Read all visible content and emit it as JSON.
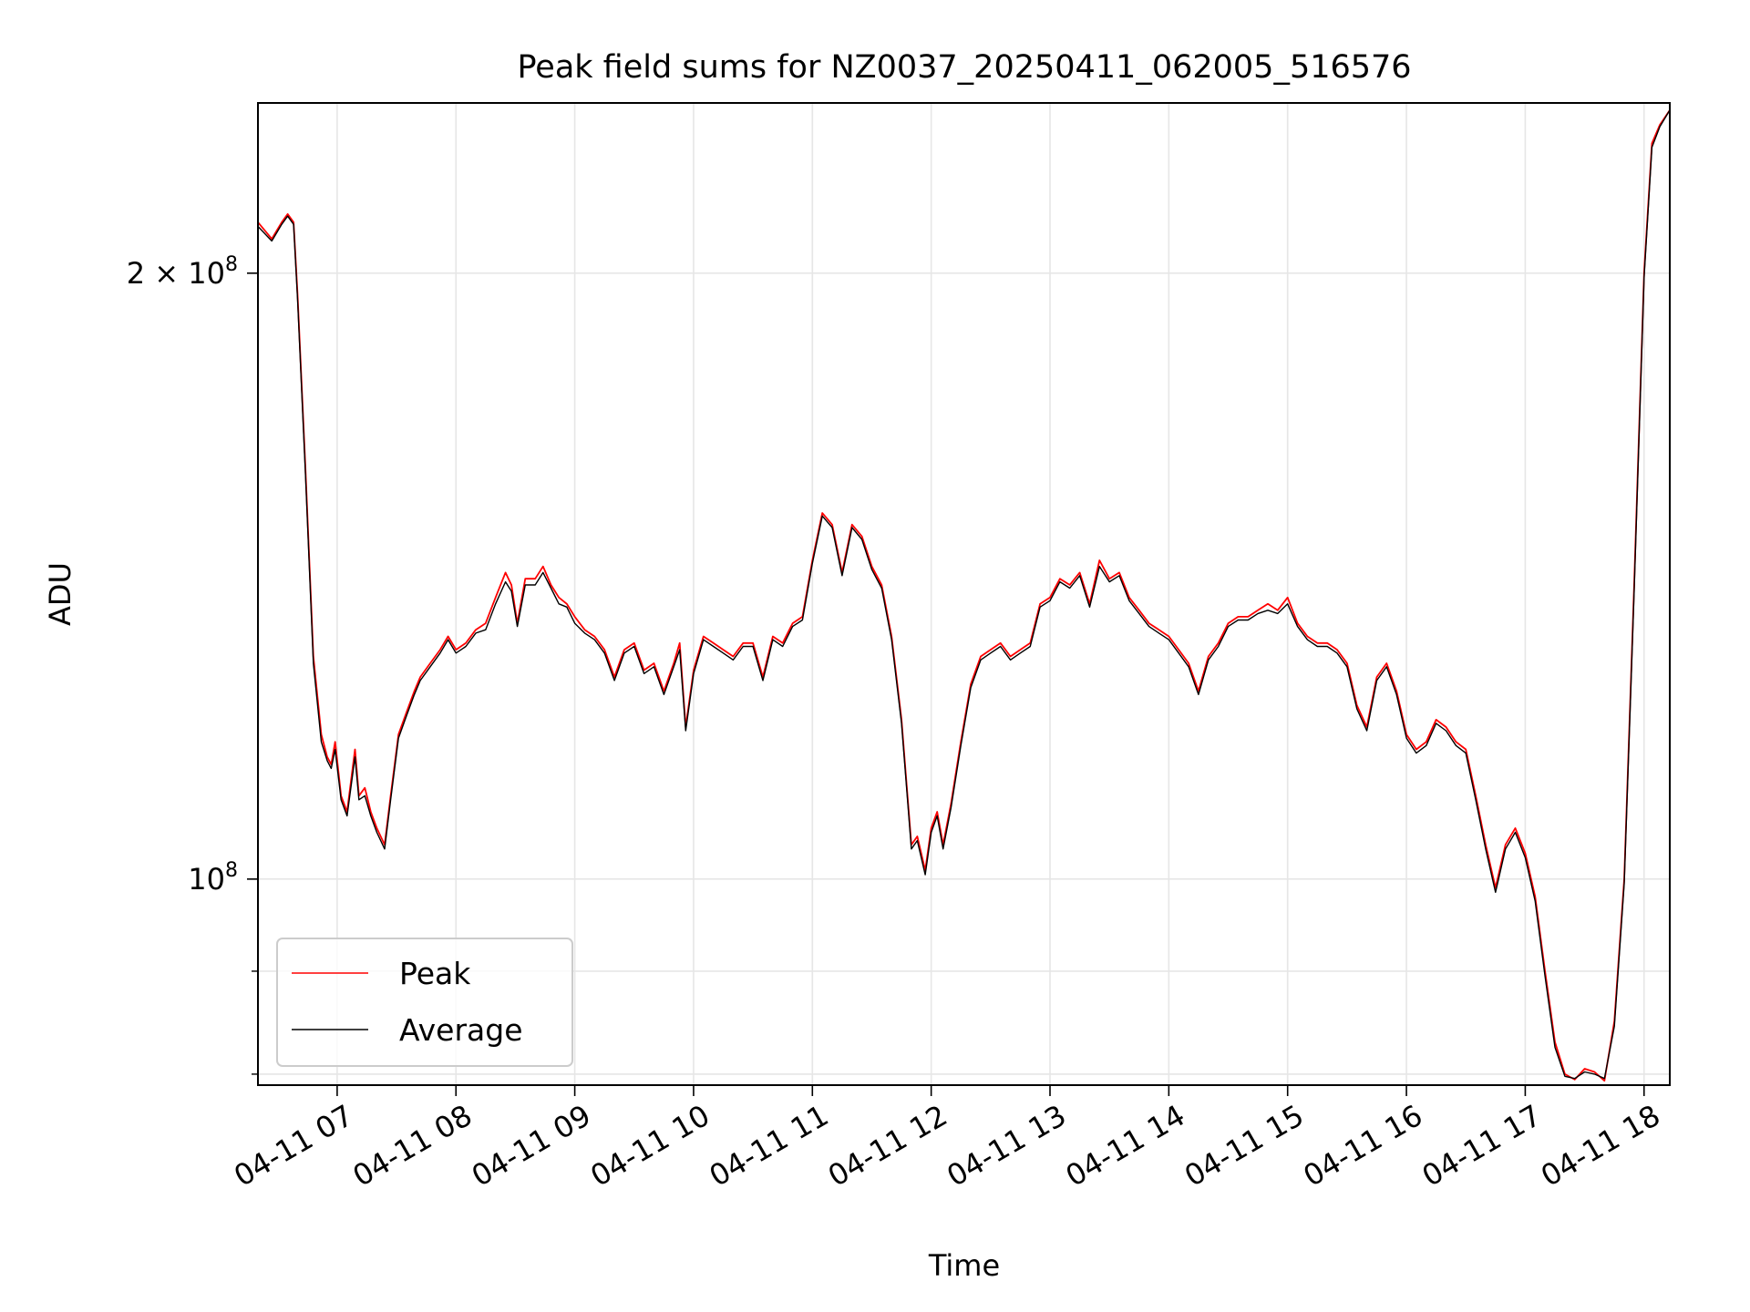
{
  "chart_data": {
    "type": "line",
    "title": "Peak field sums for NZ0037_20250411_062005_516576",
    "xlabel": "Time",
    "ylabel": "ADU",
    "yscale": "log",
    "grid": true,
    "legend_position": "lower-left",
    "x_tick_labels": [
      "04-11 07",
      "04-11 08",
      "04-11 09",
      "04-11 10",
      "04-11 11",
      "04-11 12",
      "04-11 13",
      "04-11 14",
      "04-11 15",
      "04-11 16",
      "04-11 17",
      "04-11 18"
    ],
    "y_major_ticks": [
      {
        "value": 100000000,
        "label_base": "10",
        "label_exp": "8",
        "label_coef": ""
      },
      {
        "value": 200000000,
        "label_base": "10",
        "label_exp": "8",
        "label_coef": "2 × "
      }
    ],
    "y_minor_ticks": [
      80000000,
      90000000
    ],
    "xlim": [
      "2025-04-11 06:20",
      "2025-04-11 18:13"
    ],
    "ylim": [
      79000000,
      243000000
    ],
    "colors": {
      "peak": "#ff0000",
      "average": "#000000"
    },
    "series": [
      {
        "name": "Peak",
        "color": "#ff0000",
        "x": [
          "2025-04-11 06:20",
          "2025-04-11 06:27",
          "2025-04-11 06:32",
          "2025-04-11 06:35",
          "2025-04-11 06:38",
          "2025-04-11 06:40",
          "2025-04-11 06:44",
          "2025-04-11 06:48",
          "2025-04-11 06:52",
          "2025-04-11 06:55",
          "2025-04-11 06:57",
          "2025-04-11 06:59",
          "2025-04-11 07:02",
          "2025-04-11 07:05",
          "2025-04-11 07:09",
          "2025-04-11 07:11",
          "2025-04-11 07:14",
          "2025-04-11 07:17",
          "2025-04-11 07:20",
          "2025-04-11 07:24",
          "2025-04-11 07:27",
          "2025-04-11 07:31",
          "2025-04-11 07:35",
          "2025-04-11 07:39",
          "2025-04-11 07:42",
          "2025-04-11 07:47",
          "2025-04-11 07:52",
          "2025-04-11 07:56",
          "2025-04-11 08:00",
          "2025-04-11 08:05",
          "2025-04-11 08:10",
          "2025-04-11 08:15",
          "2025-04-11 08:20",
          "2025-04-11 08:25",
          "2025-04-11 08:28",
          "2025-04-11 08:31",
          "2025-04-11 08:35",
          "2025-04-11 08:40",
          "2025-04-11 08:44",
          "2025-04-11 08:48",
          "2025-04-11 08:52",
          "2025-04-11 08:56",
          "2025-04-11 09:00",
          "2025-04-11 09:05",
          "2025-04-11 09:10",
          "2025-04-11 09:15",
          "2025-04-11 09:20",
          "2025-04-11 09:25",
          "2025-04-11 09:30",
          "2025-04-11 09:35",
          "2025-04-11 09:40",
          "2025-04-11 09:45",
          "2025-04-11 09:50",
          "2025-04-11 09:53",
          "2025-04-11 09:56",
          "2025-04-11 10:00",
          "2025-04-11 10:05",
          "2025-04-11 10:10",
          "2025-04-11 10:15",
          "2025-04-11 10:20",
          "2025-04-11 10:25",
          "2025-04-11 10:30",
          "2025-04-11 10:35",
          "2025-04-11 10:40",
          "2025-04-11 10:45",
          "2025-04-11 10:50",
          "2025-04-11 10:55",
          "2025-04-11 11:00",
          "2025-04-11 11:05",
          "2025-04-11 11:10",
          "2025-04-11 11:15",
          "2025-04-11 11:20",
          "2025-04-11 11:25",
          "2025-04-11 11:30",
          "2025-04-11 11:35",
          "2025-04-11 11:40",
          "2025-04-11 11:45",
          "2025-04-11 11:50",
          "2025-04-11 11:53",
          "2025-04-11 11:57",
          "2025-04-11 12:00",
          "2025-04-11 12:03",
          "2025-04-11 12:06",
          "2025-04-11 12:10",
          "2025-04-11 12:15",
          "2025-04-11 12:20",
          "2025-04-11 12:25",
          "2025-04-11 12:30",
          "2025-04-11 12:35",
          "2025-04-11 12:40",
          "2025-04-11 12:45",
          "2025-04-11 12:50",
          "2025-04-11 12:55",
          "2025-04-11 13:00",
          "2025-04-11 13:05",
          "2025-04-11 13:10",
          "2025-04-11 13:15",
          "2025-04-11 13:20",
          "2025-04-11 13:25",
          "2025-04-11 13:30",
          "2025-04-11 13:35",
          "2025-04-11 13:40",
          "2025-04-11 13:45",
          "2025-04-11 13:50",
          "2025-04-11 13:55",
          "2025-04-11 14:00",
          "2025-04-11 14:05",
          "2025-04-11 14:10",
          "2025-04-11 14:15",
          "2025-04-11 14:20",
          "2025-04-11 14:25",
          "2025-04-11 14:30",
          "2025-04-11 14:35",
          "2025-04-11 14:40",
          "2025-04-11 14:45",
          "2025-04-11 14:50",
          "2025-04-11 14:55",
          "2025-04-11 15:00",
          "2025-04-11 15:05",
          "2025-04-11 15:10",
          "2025-04-11 15:15",
          "2025-04-11 15:20",
          "2025-04-11 15:25",
          "2025-04-11 15:30",
          "2025-04-11 15:35",
          "2025-04-11 15:40",
          "2025-04-11 15:45",
          "2025-04-11 15:50",
          "2025-04-11 15:55",
          "2025-04-11 16:00",
          "2025-04-11 16:05",
          "2025-04-11 16:10",
          "2025-04-11 16:15",
          "2025-04-11 16:20",
          "2025-04-11 16:25",
          "2025-04-11 16:30",
          "2025-04-11 16:35",
          "2025-04-11 16:40",
          "2025-04-11 16:45",
          "2025-04-11 16:50",
          "2025-04-11 16:55",
          "2025-04-11 17:00",
          "2025-04-11 17:05",
          "2025-04-11 17:10",
          "2025-04-11 17:15",
          "2025-04-11 17:20",
          "2025-04-11 17:25",
          "2025-04-11 17:30",
          "2025-04-11 17:35",
          "2025-04-11 17:40",
          "2025-04-11 17:45",
          "2025-04-11 17:50",
          "2025-04-11 17:55",
          "2025-04-11 18:00",
          "2025-04-11 18:04",
          "2025-04-11 18:08",
          "2025-04-11 18:13"
        ],
        "values": [
          212000000,
          208000000,
          212000000,
          214000000,
          212000000,
          195000000,
          160000000,
          129000000,
          118000000,
          115000000,
          114000000,
          117000000,
          110000000,
          108000000,
          116000000,
          110000000,
          111000000,
          108000000,
          106000000,
          104000000,
          110000000,
          118000000,
          121000000,
          124000000,
          126000000,
          128000000,
          130000000,
          132000000,
          130000000,
          131000000,
          133000000,
          134000000,
          138000000,
          142000000,
          140000000,
          134000000,
          141000000,
          141000000,
          143000000,
          140000000,
          138000000,
          137000000,
          135000000,
          133000000,
          132000000,
          130000000,
          126000000,
          130000000,
          131000000,
          127000000,
          128000000,
          124000000,
          128000000,
          131000000,
          119000000,
          127000000,
          132000000,
          131000000,
          130000000,
          129000000,
          131000000,
          131000000,
          126000000,
          132000000,
          131000000,
          134000000,
          135000000,
          144000000,
          152000000,
          150000000,
          142000000,
          150000000,
          148000000,
          143000000,
          140000000,
          132000000,
          120000000,
          104000000,
          105000000,
          101000000,
          106000000,
          108000000,
          104000000,
          109000000,
          117000000,
          125000000,
          129000000,
          130000000,
          131000000,
          129000000,
          130000000,
          131000000,
          137000000,
          138000000,
          141000000,
          140000000,
          142000000,
          137000000,
          144000000,
          141000000,
          142000000,
          138000000,
          136000000,
          134000000,
          133000000,
          132000000,
          130000000,
          128000000,
          124000000,
          129000000,
          131000000,
          134000000,
          135000000,
          135000000,
          136000000,
          137000000,
          136000000,
          138000000,
          134000000,
          132000000,
          131000000,
          131000000,
          130000000,
          128000000,
          122000000,
          119000000,
          126000000,
          128000000,
          124000000,
          118000000,
          116000000,
          117000000,
          120000000,
          119000000,
          117000000,
          116000000,
          110000000,
          104000000,
          99000000,
          104000000,
          106000000,
          103000000,
          98000000,
          90000000,
          83000000,
          80000000,
          79500000,
          80500000,
          80200000,
          79400000,
          85000000,
          100000000,
          140000000,
          200000000,
          232000000,
          237000000,
          241000000
        ]
      },
      {
        "name": "Average",
        "color": "#000000",
        "x": [
          "2025-04-11 06:20",
          "2025-04-11 06:27",
          "2025-04-11 06:32",
          "2025-04-11 06:35",
          "2025-04-11 06:38",
          "2025-04-11 06:40",
          "2025-04-11 06:44",
          "2025-04-11 06:48",
          "2025-04-11 06:52",
          "2025-04-11 06:55",
          "2025-04-11 06:57",
          "2025-04-11 06:59",
          "2025-04-11 07:02",
          "2025-04-11 07:05",
          "2025-04-11 07:09",
          "2025-04-11 07:11",
          "2025-04-11 07:14",
          "2025-04-11 07:17",
          "2025-04-11 07:20",
          "2025-04-11 07:24",
          "2025-04-11 07:27",
          "2025-04-11 07:31",
          "2025-04-11 07:35",
          "2025-04-11 07:39",
          "2025-04-11 07:42",
          "2025-04-11 07:47",
          "2025-04-11 07:52",
          "2025-04-11 07:56",
          "2025-04-11 08:00",
          "2025-04-11 08:05",
          "2025-04-11 08:10",
          "2025-04-11 08:15",
          "2025-04-11 08:20",
          "2025-04-11 08:25",
          "2025-04-11 08:28",
          "2025-04-11 08:31",
          "2025-04-11 08:35",
          "2025-04-11 08:40",
          "2025-04-11 08:44",
          "2025-04-11 08:48",
          "2025-04-11 08:52",
          "2025-04-11 08:56",
          "2025-04-11 09:00",
          "2025-04-11 09:05",
          "2025-04-11 09:10",
          "2025-04-11 09:15",
          "2025-04-11 09:20",
          "2025-04-11 09:25",
          "2025-04-11 09:30",
          "2025-04-11 09:35",
          "2025-04-11 09:40",
          "2025-04-11 09:45",
          "2025-04-11 09:50",
          "2025-04-11 09:53",
          "2025-04-11 09:56",
          "2025-04-11 10:00",
          "2025-04-11 10:05",
          "2025-04-11 10:10",
          "2025-04-11 10:15",
          "2025-04-11 10:20",
          "2025-04-11 10:25",
          "2025-04-11 10:30",
          "2025-04-11 10:35",
          "2025-04-11 10:40",
          "2025-04-11 10:45",
          "2025-04-11 10:50",
          "2025-04-11 10:55",
          "2025-04-11 11:00",
          "2025-04-11 11:05",
          "2025-04-11 11:10",
          "2025-04-11 11:15",
          "2025-04-11 11:20",
          "2025-04-11 11:25",
          "2025-04-11 11:30",
          "2025-04-11 11:35",
          "2025-04-11 11:40",
          "2025-04-11 11:45",
          "2025-04-11 11:50",
          "2025-04-11 11:53",
          "2025-04-11 11:57",
          "2025-04-11 12:00",
          "2025-04-11 12:03",
          "2025-04-11 12:06",
          "2025-04-11 12:10",
          "2025-04-11 12:15",
          "2025-04-11 12:20",
          "2025-04-11 12:25",
          "2025-04-11 12:30",
          "2025-04-11 12:35",
          "2025-04-11 12:40",
          "2025-04-11 12:45",
          "2025-04-11 12:50",
          "2025-04-11 12:55",
          "2025-04-11 13:00",
          "2025-04-11 13:05",
          "2025-04-11 13:10",
          "2025-04-11 13:15",
          "2025-04-11 13:20",
          "2025-04-11 13:25",
          "2025-04-11 13:30",
          "2025-04-11 13:35",
          "2025-04-11 13:40",
          "2025-04-11 13:45",
          "2025-04-11 13:50",
          "2025-04-11 13:55",
          "2025-04-11 14:00",
          "2025-04-11 14:05",
          "2025-04-11 14:10",
          "2025-04-11 14:15",
          "2025-04-11 14:20",
          "2025-04-11 14:25",
          "2025-04-11 14:30",
          "2025-04-11 14:35",
          "2025-04-11 14:40",
          "2025-04-11 14:45",
          "2025-04-11 14:50",
          "2025-04-11 14:55",
          "2025-04-11 15:00",
          "2025-04-11 15:05",
          "2025-04-11 15:10",
          "2025-04-11 15:15",
          "2025-04-11 15:20",
          "2025-04-11 15:25",
          "2025-04-11 15:30",
          "2025-04-11 15:35",
          "2025-04-11 15:40",
          "2025-04-11 15:45",
          "2025-04-11 15:50",
          "2025-04-11 15:55",
          "2025-04-11 16:00",
          "2025-04-11 16:05",
          "2025-04-11 16:10",
          "2025-04-11 16:15",
          "2025-04-11 16:20",
          "2025-04-11 16:25",
          "2025-04-11 16:30",
          "2025-04-11 16:35",
          "2025-04-11 16:40",
          "2025-04-11 16:45",
          "2025-04-11 16:50",
          "2025-04-11 16:55",
          "2025-04-11 17:00",
          "2025-04-11 17:05",
          "2025-04-11 17:10",
          "2025-04-11 17:15",
          "2025-04-11 17:20",
          "2025-04-11 17:25",
          "2025-04-11 17:30",
          "2025-04-11 17:35",
          "2025-04-11 17:40",
          "2025-04-11 17:45",
          "2025-04-11 17:50",
          "2025-04-11 17:55",
          "2025-04-11 18:00",
          "2025-04-11 18:04",
          "2025-04-11 18:08",
          "2025-04-11 18:13"
        ],
        "values": [
          211000000,
          207500000,
          211500000,
          213500000,
          211500000,
          194000000,
          159000000,
          128000000,
          117000000,
          114500000,
          113500000,
          116000000,
          109500000,
          107500000,
          115000000,
          109500000,
          110000000,
          107500000,
          105500000,
          103500000,
          109500000,
          117500000,
          120500000,
          123500000,
          125500000,
          127500000,
          129500000,
          131500000,
          129500000,
          130500000,
          132500000,
          133000000,
          137000000,
          140500000,
          139000000,
          133500000,
          140000000,
          140000000,
          142000000,
          139500000,
          137000000,
          136500000,
          134000000,
          132500000,
          131500000,
          129500000,
          125500000,
          129500000,
          130500000,
          126500000,
          127500000,
          123500000,
          127500000,
          130000000,
          118500000,
          126500000,
          131500000,
          130500000,
          129500000,
          128500000,
          130500000,
          130500000,
          125500000,
          131500000,
          130500000,
          133500000,
          134500000,
          143500000,
          151500000,
          149500000,
          141500000,
          149500000,
          147500000,
          142500000,
          139500000,
          131500000,
          119500000,
          103500000,
          104500000,
          100500000,
          105500000,
          107500000,
          103500000,
          108500000,
          116500000,
          124500000,
          128500000,
          129500000,
          130500000,
          128500000,
          129500000,
          130500000,
          136500000,
          137500000,
          140500000,
          139500000,
          141500000,
          136500000,
          143000000,
          140500000,
          141500000,
          137500000,
          135500000,
          133500000,
          132500000,
          131500000,
          129500000,
          127500000,
          123500000,
          128500000,
          130500000,
          133500000,
          134500000,
          134500000,
          135500000,
          136000000,
          135500000,
          137000000,
          133500000,
          131500000,
          130500000,
          130500000,
          129500000,
          127500000,
          121500000,
          118500000,
          125500000,
          127500000,
          123500000,
          117500000,
          115500000,
          116500000,
          119500000,
          118500000,
          116500000,
          115500000,
          109500000,
          103500000,
          98500000,
          103500000,
          105500000,
          102500000,
          97500000,
          89500000,
          82500000,
          79800000,
          79600000,
          80200000,
          80000000,
          79600000,
          84500000,
          99500000,
          139000000,
          199000000,
          231000000,
          236500000,
          241000000
        ]
      }
    ]
  }
}
